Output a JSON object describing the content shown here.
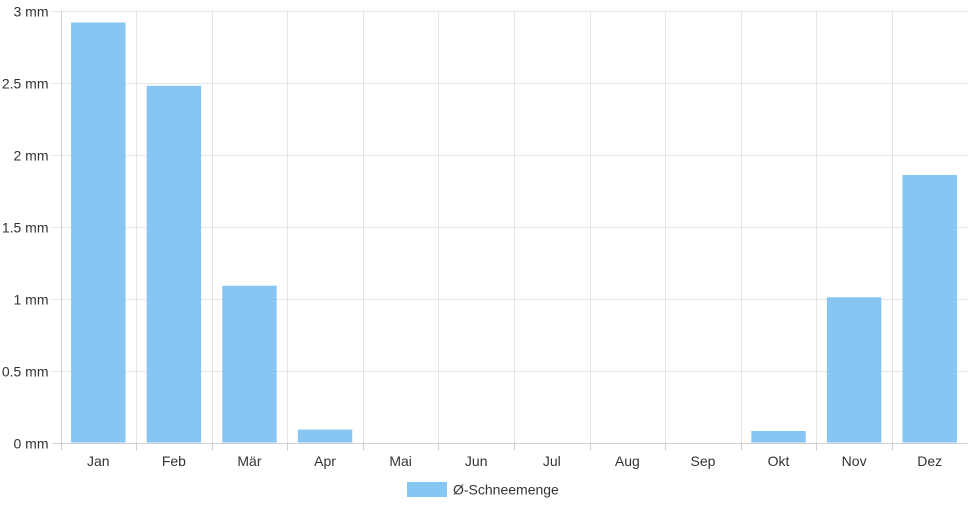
{
  "chart_data": {
    "type": "bar",
    "categories": [
      "Jan",
      "Feb",
      "Mär",
      "Apr",
      "Mai",
      "Jun",
      "Jul",
      "Aug",
      "Sep",
      "Okt",
      "Nov",
      "Dez"
    ],
    "series": [
      {
        "name": "Ø-Schneemenge",
        "values": [
          2.92,
          2.48,
          1.09,
          0.09,
          0,
          0,
          0,
          0,
          0,
          0.08,
          1.01,
          1.86
        ],
        "color": "#87c6f2"
      }
    ],
    "y_ticks": [
      "0 mm",
      "0.5 mm",
      "1 mm",
      "1.5 mm",
      "2 mm",
      "2.5 mm",
      "3 mm"
    ],
    "ylim": [
      0,
      3
    ],
    "grid": true,
    "legend_position": "bottom"
  }
}
